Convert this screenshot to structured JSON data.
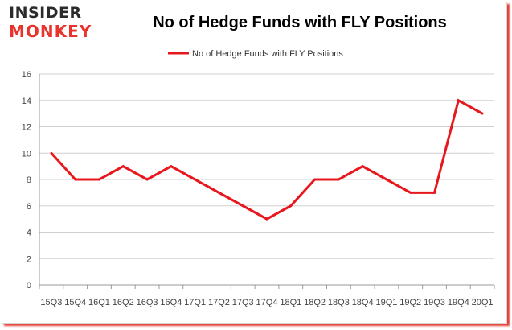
{
  "logo": {
    "line1": "INSIDER",
    "line2": "MONKEY"
  },
  "colors": {
    "series": "#e8171e",
    "grid": "#d0d0d0",
    "axis": "#999999",
    "logo_red": "#e8342c"
  },
  "chart_data": {
    "type": "line",
    "title": "No of Hedge Funds with FLY Positions",
    "xlabel": "",
    "ylabel": "",
    "categories": [
      "15Q3",
      "15Q4",
      "16Q1",
      "16Q2",
      "16Q3",
      "16Q4",
      "17Q1",
      "17Q2",
      "17Q3",
      "17Q4",
      "18Q1",
      "18Q2",
      "18Q3",
      "18Q4",
      "19Q1",
      "19Q2",
      "19Q3",
      "19Q4",
      "20Q1"
    ],
    "series": [
      {
        "name": "No of Hedge Funds with FLY Positions",
        "values": [
          10,
          8,
          8,
          9,
          8,
          9,
          8,
          7,
          6,
          5,
          6,
          8,
          8,
          9,
          8,
          7,
          7,
          14,
          13
        ]
      }
    ],
    "ylim": [
      0,
      16
    ],
    "yticks": [
      0,
      2,
      4,
      6,
      8,
      10,
      12,
      14,
      16
    ],
    "grid": true,
    "legend": "top-center"
  }
}
